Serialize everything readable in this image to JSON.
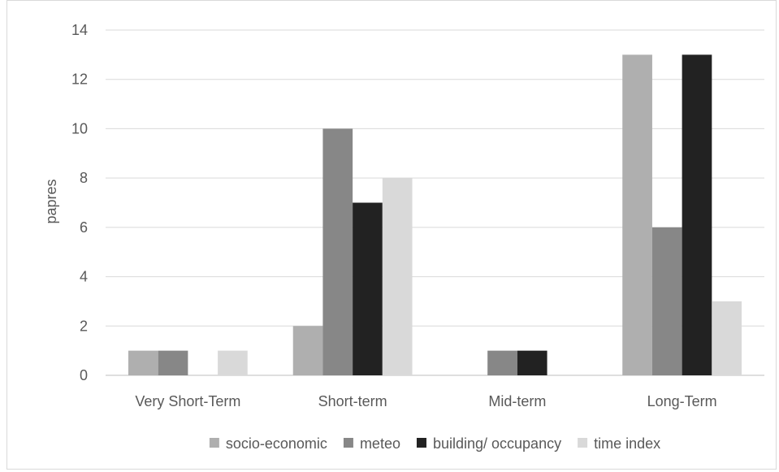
{
  "chart_data": {
    "type": "bar",
    "title": "",
    "xlabel": "",
    "ylabel": "papres",
    "ylim": [
      0,
      14
    ],
    "yticks": [
      0,
      2,
      4,
      6,
      8,
      10,
      12,
      14
    ],
    "grid": true,
    "legend_position": "bottom",
    "categories": [
      "Very Short-Term",
      "Short-term",
      "Mid-term",
      "Long-Term"
    ],
    "series": [
      {
        "name": "socio-economic",
        "color": "#afafaf",
        "values": [
          1,
          2,
          0,
          13
        ]
      },
      {
        "name": "meteo",
        "color": "#878787",
        "values": [
          1,
          10,
          1,
          6
        ]
      },
      {
        "name": "building/ occupancy",
        "color": "#222222",
        "values": [
          0,
          7,
          1,
          13
        ]
      },
      {
        "name": "time index",
        "color": "#d9d9d9",
        "values": [
          1,
          8,
          0,
          3
        ]
      }
    ]
  }
}
